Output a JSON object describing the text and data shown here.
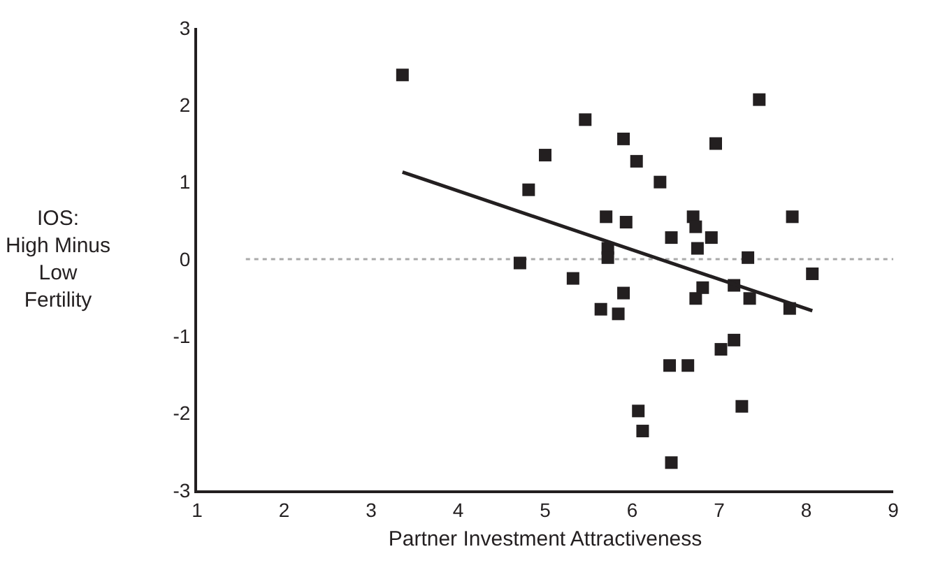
{
  "chart_data": {
    "type": "scatter",
    "xlabel": "Partner Investment Attractiveness",
    "ylabel": "IOS:\nHigh Minus\nLow\nFertility",
    "xlim": [
      1,
      9
    ],
    "xticks": [
      1,
      2,
      3,
      4,
      5,
      6,
      7,
      8,
      9
    ],
    "ylim": [
      -3,
      3
    ],
    "yticks": [
      -3,
      -2,
      -1,
      0,
      1,
      2,
      3
    ],
    "grid": false,
    "legend": false,
    "series": [
      {
        "color": "#231f20",
        "marker": "square",
        "x": [
          3.36,
          4.71,
          4.81,
          5.0,
          5.32,
          5.46,
          5.64,
          5.7,
          5.72,
          5.72,
          5.84,
          5.9,
          5.9,
          5.93,
          6.05,
          6.07,
          6.12,
          6.32,
          6.43,
          6.45,
          6.45,
          6.64,
          6.7,
          6.73,
          6.73,
          6.75,
          6.81,
          6.91,
          6.96,
          7.02,
          7.17,
          7.17,
          7.26,
          7.33,
          7.35,
          7.46,
          7.81,
          7.84,
          8.07
        ],
        "values": [
          2.39,
          -0.05,
          0.9,
          1.35,
          -0.25,
          1.81,
          -0.65,
          0.55,
          0.14,
          0.02,
          -0.71,
          -0.44,
          1.56,
          0.48,
          1.27,
          -1.97,
          -2.23,
          1.0,
          -1.38,
          -2.64,
          0.28,
          -1.38,
          0.55,
          0.42,
          -0.51,
          0.14,
          -0.37,
          0.28,
          1.5,
          -1.17,
          -1.05,
          -0.34,
          -1.91,
          0.02,
          -0.51,
          2.07,
          -0.64,
          0.55,
          -0.19
        ]
      },
      {
        "type": "line",
        "color": "#231f20",
        "line_style": "solid",
        "x": [
          3.36,
          8.07
        ],
        "values": [
          1.13,
          -0.67
        ]
      }
    ],
    "ref_lines": [
      {
        "axis": "y",
        "value": 0,
        "label": null,
        "color": "#aaaaaa",
        "line_style": "dotted"
      }
    ]
  }
}
